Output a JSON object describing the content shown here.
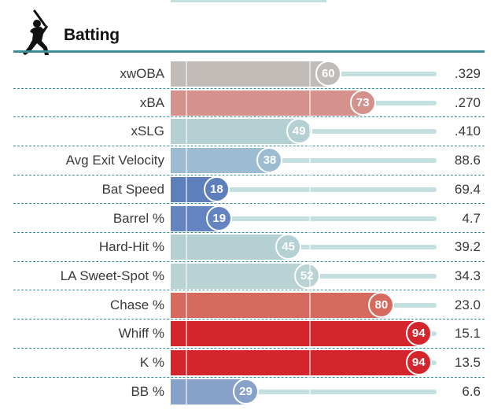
{
  "section": {
    "title": "Batting",
    "icon": "batter-icon"
  },
  "colors": {
    "rule": "#3c8c96",
    "track": "#c3dfe0"
  },
  "metrics": [
    {
      "label": "xwOBA",
      "percentile": "60",
      "value": ".329",
      "color": "#c2bcb8"
    },
    {
      "label": "xBA",
      "percentile": "73",
      "value": ".270",
      "color": "#d5918b"
    },
    {
      "label": "xSLG",
      "percentile": "49",
      "value": ".410",
      "color": "#b4d0d2"
    },
    {
      "label": "Avg Exit Velocity",
      "percentile": "38",
      "value": "88.6",
      "color": "#9dbbd1"
    },
    {
      "label": "Bat Speed",
      "percentile": "18",
      "value": "69.4",
      "color": "#5d80bd"
    },
    {
      "label": "Barrel %",
      "percentile": "19",
      "value": "4.7",
      "color": "#6384c0"
    },
    {
      "label": "Hard-Hit %",
      "percentile": "45",
      "value": "39.2",
      "color": "#b4d0d2"
    },
    {
      "label": "LA Sweet-Spot %",
      "percentile": "52",
      "value": "34.3",
      "color": "#b9d2d3"
    },
    {
      "label": "Chase %",
      "percentile": "80",
      "value": "23.0",
      "color": "#d76a5f"
    },
    {
      "label": "Whiff %",
      "percentile": "94",
      "value": "15.1",
      "color": "#d4252d"
    },
    {
      "label": "K %",
      "percentile": "94",
      "value": "13.5",
      "color": "#d4252d"
    },
    {
      "label": "BB %",
      "percentile": "29",
      "value": "6.6",
      "color": "#87a1c8"
    }
  ]
}
